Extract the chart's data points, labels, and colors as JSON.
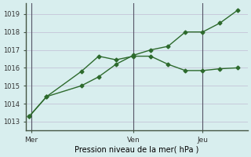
{
  "line1_x": [
    0,
    0.5,
    1.5,
    2.0,
    2.5,
    3.0,
    3.5,
    4.0,
    4.5,
    5.0,
    5.5,
    6.0
  ],
  "line1_y": [
    1013.3,
    1014.4,
    1015.8,
    1016.65,
    1016.45,
    1016.65,
    1016.65,
    1016.2,
    1015.85,
    1015.85,
    1015.95,
    1016.0
  ],
  "line2_x": [
    0,
    0.5,
    1.5,
    2.0,
    2.5,
    3.0,
    3.5,
    4.0,
    4.5,
    5.0,
    5.5,
    6.0
  ],
  "line2_y": [
    1013.3,
    1014.4,
    1015.0,
    1015.5,
    1016.2,
    1016.7,
    1017.0,
    1017.2,
    1018.0,
    1018.0,
    1018.5,
    1019.2
  ],
  "xtick_positions": [
    0.05,
    3.0,
    5.0
  ],
  "xtick_labels": [
    "Mer",
    "Ven",
    "Jeu"
  ],
  "vline_positions": [
    0.05,
    3.0,
    5.0
  ],
  "ytick_positions": [
    1013,
    1014,
    1015,
    1016,
    1017,
    1018,
    1019
  ],
  "ylim": [
    1012.5,
    1019.6
  ],
  "xlim": [
    -0.1,
    6.3
  ],
  "xlabel": "Pression niveau de la mer( hPa )",
  "line_color": "#2d6a2d",
  "bg_color": "#d8eeee",
  "grid_color": "#c4c4d8",
  "vline_color": "#555566",
  "marker": "D",
  "markersize": 2.5,
  "linewidth": 1.0
}
